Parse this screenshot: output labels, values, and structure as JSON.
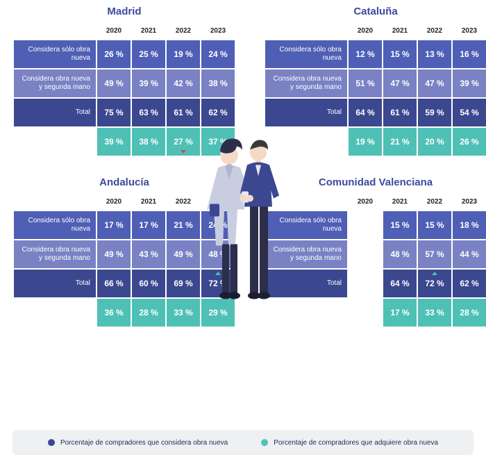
{
  "colors": {
    "title": "#3b4a9e",
    "header_text": "#222222",
    "row_solo": "#4f5fb5",
    "row_mix": "#7a82c4",
    "row_total": "#3b478f",
    "footer": "#4fc0b5",
    "legend_bg": "#eef0f2",
    "legend_dot_considera": "#3b478f",
    "legend_dot_adquiere": "#4fc0b5",
    "arrow_up": "#4fc0b5",
    "arrow_down": "#d04a5a"
  },
  "typography": {
    "title_fontsize": 15,
    "cell_fontsize": 12,
    "label_fontsize": 10,
    "header_fontsize": 10,
    "legend_fontsize": 10
  },
  "years": [
    "2020",
    "2021",
    "2022",
    "2023"
  ],
  "row_labels": {
    "solo": "Considera sólo obra nueva",
    "mix": "Considera obra nueva y segunda mano",
    "total": "Total"
  },
  "legend": {
    "considera": "Porcentaje de compradores que considera obra nueva",
    "adquiere": "Porcentaje de compradores que adquiere obra nueva"
  },
  "regions": [
    {
      "name": "Madrid",
      "solo": [
        {
          "v": "26 %"
        },
        {
          "v": "25 %"
        },
        {
          "v": "19 %"
        },
        {
          "v": "24 %"
        }
      ],
      "mix": [
        {
          "v": "49 %"
        },
        {
          "v": "39 %"
        },
        {
          "v": "42 %"
        },
        {
          "v": "38 %"
        }
      ],
      "total": [
        {
          "v": "75 %"
        },
        {
          "v": "63 %"
        },
        {
          "v": "61 %"
        },
        {
          "v": "62 %"
        }
      ],
      "footer": [
        {
          "v": "39 %"
        },
        {
          "v": "38 %"
        },
        {
          "v": "27 %",
          "arrow": "down"
        },
        {
          "v": "37 %",
          "arrow": "up"
        }
      ]
    },
    {
      "name": "Cataluña",
      "solo": [
        {
          "v": "12 %"
        },
        {
          "v": "15 %"
        },
        {
          "v": "13 %"
        },
        {
          "v": "16 %"
        }
      ],
      "mix": [
        {
          "v": "51 %"
        },
        {
          "v": "47 %"
        },
        {
          "v": "47 %"
        },
        {
          "v": "39 %"
        }
      ],
      "total": [
        {
          "v": "64 %"
        },
        {
          "v": "61 %"
        },
        {
          "v": "59 %"
        },
        {
          "v": "54 %"
        }
      ],
      "footer": [
        {
          "v": "19 %"
        },
        {
          "v": "21 %"
        },
        {
          "v": "20 %"
        },
        {
          "v": "26 %"
        }
      ]
    },
    {
      "name": "Andalucía",
      "solo": [
        {
          "v": "17 %"
        },
        {
          "v": "17 %"
        },
        {
          "v": "21 %"
        },
        {
          "v": "24 %"
        }
      ],
      "mix": [
        {
          "v": "49 %"
        },
        {
          "v": "43 %"
        },
        {
          "v": "49 %"
        },
        {
          "v": "48 %"
        }
      ],
      "total": [
        {
          "v": "66 %"
        },
        {
          "v": "60 %"
        },
        {
          "v": "69 %"
        },
        {
          "v": "72 %",
          "arrow": "up"
        }
      ],
      "footer": [
        {
          "v": "36 %"
        },
        {
          "v": "28 %"
        },
        {
          "v": "33 %"
        },
        {
          "v": "29 %"
        }
      ]
    },
    {
      "name": "Comunidad Valenciana",
      "solo": [
        {
          "v": ""
        },
        {
          "v": "15 %"
        },
        {
          "v": "15 %"
        },
        {
          "v": "18 %"
        }
      ],
      "mix": [
        {
          "v": ""
        },
        {
          "v": "48 %"
        },
        {
          "v": "57 %"
        },
        {
          "v": "44 %"
        }
      ],
      "total": [
        {
          "v": ""
        },
        {
          "v": "64 %"
        },
        {
          "v": "72 %",
          "arrow": "up"
        },
        {
          "v": "62 %"
        }
      ],
      "footer": [
        {
          "v": ""
        },
        {
          "v": "17 %"
        },
        {
          "v": "33 %",
          "arrow": "up"
        },
        {
          "v": "28 %"
        }
      ]
    }
  ]
}
